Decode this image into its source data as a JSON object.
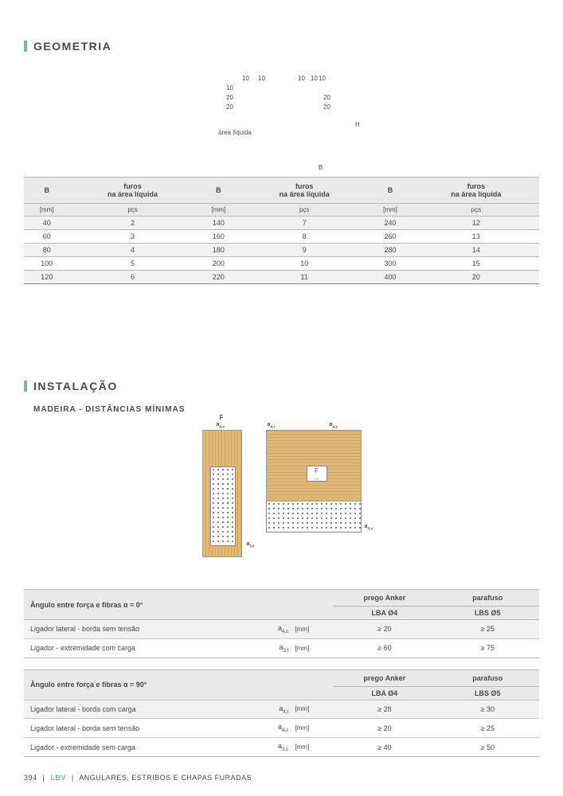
{
  "section_geometria": {
    "title": "GEOMETRIA",
    "diagram_labels": {
      "t1": "10",
      "t2": "10",
      "t3": "10",
      "t4": "10",
      "t5": "10",
      "s1": "10",
      "s2": "20",
      "s3": "20",
      "s4": "20",
      "s5": "20",
      "H": "H",
      "B": "B",
      "area": "área líquida"
    },
    "table": {
      "headers": [
        "B",
        "furos\nna área líquida",
        "B",
        "furos\nna área líquida",
        "B",
        "furos\nna área líquida"
      ],
      "subheaders": [
        "[mm]",
        "pçs",
        "[mm]",
        "pçs",
        "[mm]",
        "pçs"
      ],
      "rows": [
        [
          "40",
          "2",
          "140",
          "7",
          "240",
          "12"
        ],
        [
          "60",
          "3",
          "160",
          "8",
          "260",
          "13"
        ],
        [
          "80",
          "4",
          "180",
          "9",
          "280",
          "14"
        ],
        [
          "100",
          "5",
          "200",
          "10",
          "300",
          "15"
        ],
        [
          "120",
          "6",
          "220",
          "11",
          "400",
          "20"
        ]
      ],
      "alt_rows": [
        0,
        2,
        4
      ]
    }
  },
  "section_instalacao": {
    "title": "INSTALAÇÃO",
    "subtitle": "MADEIRA - DISTÂNCIAS MÍNIMAS",
    "diagram_labels": {
      "F": "F",
      "a4c": "a4,c",
      "a3t": "a3,t",
      "a4t": "a4,t",
      "a3c": "a3,c",
      "arrow": "→"
    },
    "table_0deg": {
      "angle_title": "Ângulo entre força e fibras α = 0°",
      "col1": "prego Anker",
      "col1_sub": "LBA Ø4",
      "col2": "parafuso",
      "col2_sub": "LBS Ø5",
      "rows": [
        {
          "label": "Ligador lateral - borda sem tensão",
          "sym": "a4,c",
          "unit": "[mm]",
          "v1": "≥ 20",
          "v2": "≥ 25",
          "alt": true
        },
        {
          "label": "Ligador - extremidade com carga",
          "sym": "a3,t",
          "unit": "[mm]",
          "v1": "≥ 60",
          "v2": "≥ 75",
          "alt": false
        }
      ]
    },
    "table_90deg": {
      "angle_title": "Ângulo entre força e fibras α = 90°",
      "col1": "prego Anker",
      "col1_sub": "LBA Ø4",
      "col2": "parafuso",
      "col2_sub": "LBS Ø5",
      "rows": [
        {
          "label": "Ligador lateral - borda com carga",
          "sym": "a4,t",
          "unit": "[mm]",
          "v1": "≥ 28",
          "v2": "≥ 30",
          "alt": true
        },
        {
          "label": "Ligador lateral - borda sem tensão",
          "sym": "a4,c",
          "unit": "[mm]",
          "v1": "≥ 20",
          "v2": "≥ 25",
          "alt": false
        },
        {
          "label": "Ligador - extremidade sem carga",
          "sym": "a3,c",
          "unit": "[mm]",
          "v1": "≥ 40",
          "v2": "≥ 50",
          "alt": false
        }
      ]
    }
  },
  "footer": {
    "page": "394",
    "category": "LBV",
    "breadcrumb": "ANGULARES, ESTRIBOS E CHAPAS FURADAS"
  },
  "colors": {
    "accent": "#6fb7c5",
    "wood_light": "#e0b878",
    "wood_dark": "#d4a760",
    "header_bg": "#e9e9e9",
    "alt_bg": "#f2f2f2",
    "text": "#4a4a4a"
  }
}
